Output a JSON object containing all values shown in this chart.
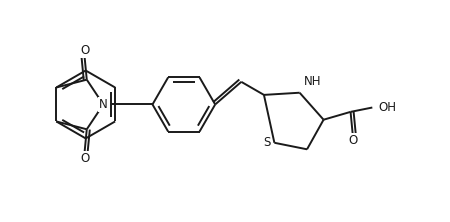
{
  "background_color": "#ffffff",
  "line_color": "#1a1a1a",
  "line_width": 1.4,
  "font_size": 8.5,
  "figsize": [
    4.5,
    2.22
  ],
  "dpi": 100,
  "xlim": [
    0,
    9.0
  ],
  "ylim": [
    -0.3,
    4.8
  ]
}
